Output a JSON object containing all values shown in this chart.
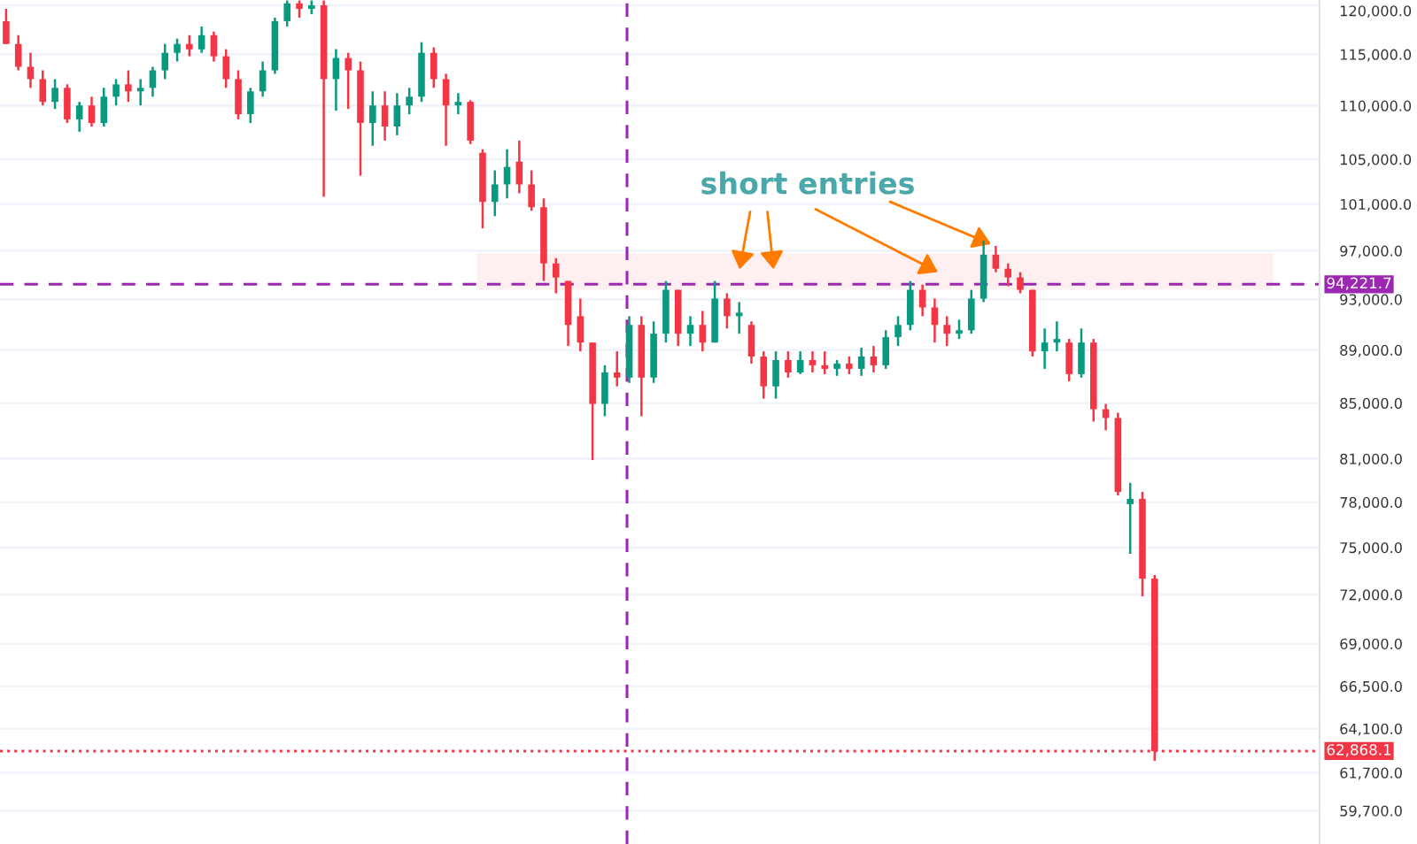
{
  "chart_data": {
    "type": "candlestick",
    "annotations": [
      "short entries"
    ],
    "categories": [
      null,
      null,
      null,
      null,
      null,
      null,
      null,
      null,
      null,
      null,
      null,
      null,
      null,
      null,
      null,
      null,
      null,
      null,
      null,
      null,
      null,
      null,
      null,
      null,
      null,
      null,
      null,
      null,
      null,
      null,
      null,
      null,
      null,
      null,
      null,
      null,
      null,
      null,
      null,
      null,
      null,
      null,
      null,
      null,
      null,
      null,
      null,
      null,
      null,
      null,
      null,
      null,
      null,
      null,
      null,
      null,
      null,
      null,
      null,
      null,
      null,
      null,
      null,
      null,
      null,
      null,
      null,
      null,
      null,
      null,
      null,
      null,
      null,
      null,
      null,
      null,
      null,
      null,
      null,
      null,
      null,
      null,
      null,
      null,
      null,
      null,
      null,
      null,
      null,
      null,
      null,
      null,
      null,
      null,
      null,
      null,
      null,
      null,
      null,
      null,
      null,
      null,
      null,
      null,
      null,
      null,
      null,
      null
    ],
    "ohlc": [
      [
        118360,
        119630,
        116040,
        116040
      ],
      [
        116040,
        116930,
        113420,
        113770
      ],
      [
        113770,
        115160,
        111710,
        112560
      ],
      [
        112560,
        113420,
        110020,
        110360
      ],
      [
        110360,
        112560,
        109690,
        111710
      ],
      [
        111710,
        112050,
        108360,
        108700
      ],
      [
        108700,
        110360,
        107540,
        110020
      ],
      [
        110020,
        110860,
        108030,
        108360
      ],
      [
        108360,
        111710,
        108030,
        110860
      ],
      [
        110860,
        112560,
        110020,
        112050
      ],
      [
        112050,
        113420,
        110360,
        111370
      ],
      [
        111370,
        112560,
        110020,
        111710
      ],
      [
        111710,
        113770,
        110860,
        113420
      ],
      [
        113420,
        116040,
        112560,
        115160
      ],
      [
        115160,
        116580,
        114290,
        116040
      ],
      [
        116040,
        116930,
        114810,
        115500
      ],
      [
        115500,
        117820,
        115160,
        116930
      ],
      [
        116930,
        117290,
        114290,
        114810
      ],
      [
        114810,
        115520,
        111710,
        112560
      ],
      [
        112560,
        113420,
        108700,
        109190
      ],
      [
        109190,
        111710,
        108360,
        111370
      ],
      [
        111370,
        114290,
        110860,
        113420
      ],
      [
        113420,
        118720,
        113080,
        118360
      ],
      [
        118360,
        120500,
        117820,
        120200
      ],
      [
        120200,
        120500,
        118720,
        119630
      ],
      [
        119630,
        120500,
        119080,
        120000
      ],
      [
        120000,
        120500,
        101650,
        112560
      ],
      [
        112560,
        115520,
        109520,
        114640
      ],
      [
        114640,
        115160,
        109690,
        113420
      ],
      [
        113420,
        114290,
        103520,
        108360
      ],
      [
        108360,
        111370,
        106240,
        110020
      ],
      [
        110020,
        111370,
        106720,
        108030
      ],
      [
        108030,
        111200,
        107210,
        110020
      ],
      [
        110020,
        111710,
        109190,
        110860
      ],
      [
        110860,
        116220,
        110360,
        115160
      ],
      [
        115160,
        115690,
        111710,
        112560
      ],
      [
        112560,
        113080,
        106240,
        110020
      ],
      [
        110020,
        111200,
        109190,
        110360
      ],
      [
        110360,
        110520,
        106400,
        106720
      ],
      [
        105600,
        105920,
        98900,
        101190
      ],
      [
        101190,
        104000,
        99960,
        102740
      ],
      [
        102740,
        105920,
        101500,
        104310
      ],
      [
        104790,
        106720,
        101960,
        102740
      ],
      [
        102740,
        104000,
        100420,
        100730
      ],
      [
        100730,
        101500,
        94490,
        95940
      ],
      [
        95940,
        96380,
        93490,
        94780
      ],
      [
        94490,
        94490,
        89310,
        90960
      ],
      [
        91650,
        93060,
        88900,
        89580
      ],
      [
        89580,
        89580,
        80900,
        84940
      ],
      [
        84940,
        87830,
        84040,
        87290
      ],
      [
        87290,
        88900,
        86240,
        86900
      ],
      [
        86900,
        91650,
        86500,
        90960
      ],
      [
        90960,
        91650,
        84040,
        86900
      ],
      [
        86900,
        91240,
        86500,
        90270
      ],
      [
        90270,
        94490,
        89580,
        93770
      ],
      [
        93770,
        93770,
        89310,
        90270
      ],
      [
        90270,
        91650,
        89310,
        90960
      ],
      [
        90960,
        92070,
        88900,
        89580
      ],
      [
        89580,
        94490,
        89580,
        93060
      ],
      [
        93060,
        93490,
        90680,
        91650
      ],
      [
        91650,
        92780,
        90270,
        91930
      ],
      [
        90960,
        91240,
        87960,
        88500
      ],
      [
        88500,
        88900,
        85330,
        86240
      ],
      [
        86240,
        88900,
        85330,
        88230
      ],
      [
        88230,
        88900,
        86900,
        87290
      ],
      [
        87290,
        88900,
        87160,
        88230
      ],
      [
        88230,
        88900,
        87290,
        87830
      ],
      [
        87830,
        88900,
        87160,
        87560
      ],
      [
        87560,
        88230,
        87030,
        87960
      ],
      [
        87960,
        88500,
        87160,
        87560
      ],
      [
        87560,
        89180,
        87030,
        88500
      ],
      [
        88500,
        89310,
        87290,
        87830
      ],
      [
        87830,
        90540,
        87560,
        90000
      ],
      [
        90000,
        91650,
        89310,
        90960
      ],
      [
        90960,
        94490,
        90540,
        93770
      ],
      [
        93770,
        94200,
        91650,
        92350
      ],
      [
        92350,
        93060,
        89580,
        90960
      ],
      [
        90960,
        91650,
        89310,
        90270
      ],
      [
        90270,
        91370,
        89860,
        90540
      ],
      [
        90540,
        93770,
        90270,
        93060
      ],
      [
        93060,
        97860,
        92780,
        96670
      ],
      [
        96670,
        97410,
        95210,
        95500
      ],
      [
        95500,
        95940,
        94060,
        94780
      ],
      [
        94780,
        95210,
        93490,
        93770
      ],
      [
        93770,
        93770,
        88500,
        88900
      ],
      [
        88900,
        90680,
        87560,
        89580
      ],
      [
        89580,
        91240,
        88900,
        89860
      ],
      [
        89580,
        89860,
        86630,
        87160
      ],
      [
        87160,
        90680,
        86900,
        89580
      ],
      [
        89580,
        89860,
        83650,
        84550
      ],
      [
        84550,
        84940,
        83020,
        83910
      ],
      [
        83910,
        84290,
        78460,
        78700
      ],
      [
        77870,
        79320,
        74590,
        78230
      ],
      [
        78230,
        78700,
        71890,
        73000
      ],
      [
        73000,
        73230,
        62340,
        62868.1
      ],
      null,
      null,
      null,
      null,
      null,
      null,
      null,
      null,
      null,
      null,
      null,
      null,
      null
    ],
    "colors": [
      "#f23645",
      "#f23645",
      "#f23645",
      "#f23645",
      "#089981",
      "#f23645",
      "#089981",
      "#f23645",
      "#089981",
      "#089981",
      "#f23645",
      "#089981",
      "#089981",
      "#089981",
      "#089981",
      "#f23645",
      "#089981",
      "#f23645",
      "#f23645",
      "#f23645",
      "#089981",
      "#089981",
      "#089981",
      "#089981",
      "#f23645",
      "#089981",
      "#f23645",
      "#089981",
      "#f23645",
      "#f23645",
      "#089981",
      "#f23645",
      "#089981",
      "#089981",
      "#089981",
      "#f23645",
      "#f23645",
      "#089981",
      "#f23645",
      "#f23645",
      "#089981",
      "#089981",
      "#f23645",
      "#f23645",
      "#f23645",
      "#f23645",
      "#f23645",
      "#f23645",
      "#f23645",
      "#089981",
      "#f23645",
      "#089981",
      "#f23645",
      "#089981",
      "#089981",
      "#f23645",
      "#089981",
      "#f23645",
      "#089981",
      "#f23645",
      "#089981",
      "#f23645",
      "#f23645",
      "#089981",
      "#f23645",
      "#089981",
      "#f23645",
      "#f23645",
      "#089981",
      "#f23645",
      "#089981",
      "#f23645",
      "#089981",
      "#089981",
      "#089981",
      "#f23645",
      "#f23645",
      "#f23645",
      "#089981",
      "#089981",
      "#089981",
      "#f23645",
      "#f23645",
      "#f23645",
      "#f23645",
      "#089981",
      "#089981",
      "#f23645",
      "#089981",
      "#f23645",
      "#f23645",
      "#f23645",
      "#089981",
      "#f23645",
      "#f23645",
      null,
      null,
      null,
      null,
      null,
      null,
      null,
      null,
      null,
      null,
      null,
      null,
      null
    ],
    "log": "y",
    "ylim": [
      58000,
      120550
    ],
    "yticks": [
      {
        "value": 120000,
        "label": "120,000.0"
      },
      {
        "value": 115000,
        "label": "115,000.0"
      },
      {
        "value": 110000,
        "label": "110,000.0"
      },
      {
        "value": 105000,
        "label": "105,000.0"
      },
      {
        "value": 101000,
        "label": "101,000.0"
      },
      {
        "value": 97000,
        "label": "97,000.0"
      },
      {
        "value": 93000,
        "label": "93,000.0"
      },
      {
        "value": 89000,
        "label": "89,000.0"
      },
      {
        "value": 85000,
        "label": "85,000.0"
      },
      {
        "value": 81000,
        "label": "81,000.0"
      },
      {
        "value": 78000,
        "label": "78,000.0"
      },
      {
        "value": 75000,
        "label": "75,000.0"
      },
      {
        "value": 72000,
        "label": "72,000.0"
      },
      {
        "value": 69000,
        "label": "69,000.0"
      },
      {
        "value": 66500,
        "label": "66,500.0"
      },
      {
        "value": 64100,
        "label": "64,100.0"
      },
      {
        "value": 61700,
        "label": "61,700.0"
      },
      {
        "value": 59700,
        "label": "59,700.0"
      }
    ],
    "tick_labels": "y",
    "grid": "y",
    "ref_lines": [
      {
        "axis": "y",
        "value": 94221.7,
        "label": "94,221.7",
        "color": "#9c27b0",
        "line_style": "dashed"
      },
      {
        "axis": "y",
        "value": 62868.1,
        "label": "62,868.1",
        "color": "#f23645",
        "line_style": "dotted"
      }
    ],
    "bands": [
      {
        "axis": "y",
        "from": 93890,
        "to": 96660,
        "color": "#f23645"
      }
    ]
  }
}
